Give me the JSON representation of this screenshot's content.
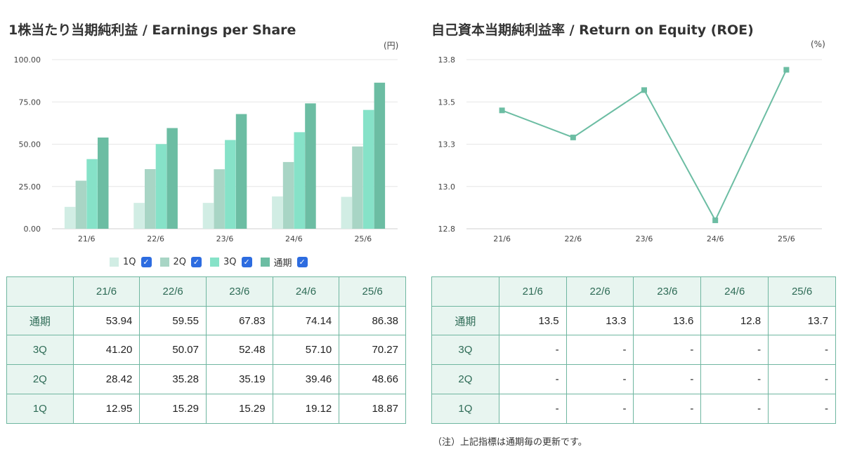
{
  "eps": {
    "title": "1株当たり当期純利益 / Earnings per Share",
    "unit": "(円)",
    "legend": [
      {
        "name": "1Q",
        "color": "#d1ede4"
      },
      {
        "name": "2Q",
        "color": "#a8d5c5"
      },
      {
        "name": "3Q",
        "color": "#86e2c8"
      },
      {
        "name": "通期",
        "color": "#6cbda3"
      }
    ],
    "table": {
      "headers": [
        "",
        "21/6",
        "22/6",
        "23/6",
        "24/6",
        "25/6"
      ],
      "rows": [
        {
          "label": "通期",
          "values": [
            "53.94",
            "59.55",
            "67.83",
            "74.14",
            "86.38"
          ]
        },
        {
          "label": "3Q",
          "values": [
            "41.20",
            "50.07",
            "52.48",
            "57.10",
            "70.27"
          ]
        },
        {
          "label": "2Q",
          "values": [
            "28.42",
            "35.28",
            "35.19",
            "39.46",
            "48.66"
          ]
        },
        {
          "label": "1Q",
          "values": [
            "12.95",
            "15.29",
            "15.29",
            "19.12",
            "18.87"
          ]
        }
      ]
    }
  },
  "roe": {
    "title": "自己資本当期純利益率 / Return on Equity (ROE)",
    "unit": "(%)",
    "table": {
      "headers": [
        "",
        "21/6",
        "22/6",
        "23/6",
        "24/6",
        "25/6"
      ],
      "rows": [
        {
          "label": "通期",
          "values": [
            "13.5",
            "13.3",
            "13.6",
            "12.8",
            "13.7"
          ]
        },
        {
          "label": "3Q",
          "values": [
            "-",
            "-",
            "-",
            "-",
            "-"
          ]
        },
        {
          "label": "2Q",
          "values": [
            "-",
            "-",
            "-",
            "-",
            "-"
          ]
        },
        {
          "label": "1Q",
          "values": [
            "-",
            "-",
            "-",
            "-",
            "-"
          ]
        }
      ]
    },
    "footnote": "（注）上記指標は通期毎の更新です。"
  },
  "chart_data": [
    {
      "type": "bar",
      "title": "1株当たり当期純利益 / Earnings per Share",
      "unit": "(円)",
      "categories": [
        "21/6",
        "22/6",
        "23/6",
        "24/6",
        "25/6"
      ],
      "ylim": [
        0,
        100
      ],
      "yticks": [
        "0.00",
        "25.00",
        "50.00",
        "75.00",
        "100.00"
      ],
      "grid": true,
      "legend_position": "bottom",
      "series": [
        {
          "name": "1Q",
          "color": "#d1ede4",
          "values": [
            12.95,
            15.29,
            15.29,
            19.12,
            18.87
          ]
        },
        {
          "name": "2Q",
          "color": "#a8d5c5",
          "values": [
            28.42,
            35.28,
            35.19,
            39.46,
            48.66
          ]
        },
        {
          "name": "3Q",
          "color": "#86e2c8",
          "values": [
            41.2,
            50.07,
            52.48,
            57.1,
            70.27
          ]
        },
        {
          "name": "通期",
          "color": "#6cbda3",
          "values": [
            53.94,
            59.55,
            67.83,
            74.14,
            86.38
          ]
        }
      ]
    },
    {
      "type": "line",
      "title": "自己資本当期純利益率 / Return on Equity (ROE)",
      "unit": "(%)",
      "categories": [
        "21/6",
        "22/6",
        "23/6",
        "24/6",
        "25/6"
      ],
      "ylim": [
        12.8,
        13.8
      ],
      "yticks": [
        "12.8",
        "13.0",
        "13.3",
        "13.5",
        "13.8"
      ],
      "grid": true,
      "series": [
        {
          "color": "#6cbda3",
          "values": [
            13.5,
            13.34,
            13.62,
            12.85,
            13.74
          ]
        }
      ]
    }
  ]
}
